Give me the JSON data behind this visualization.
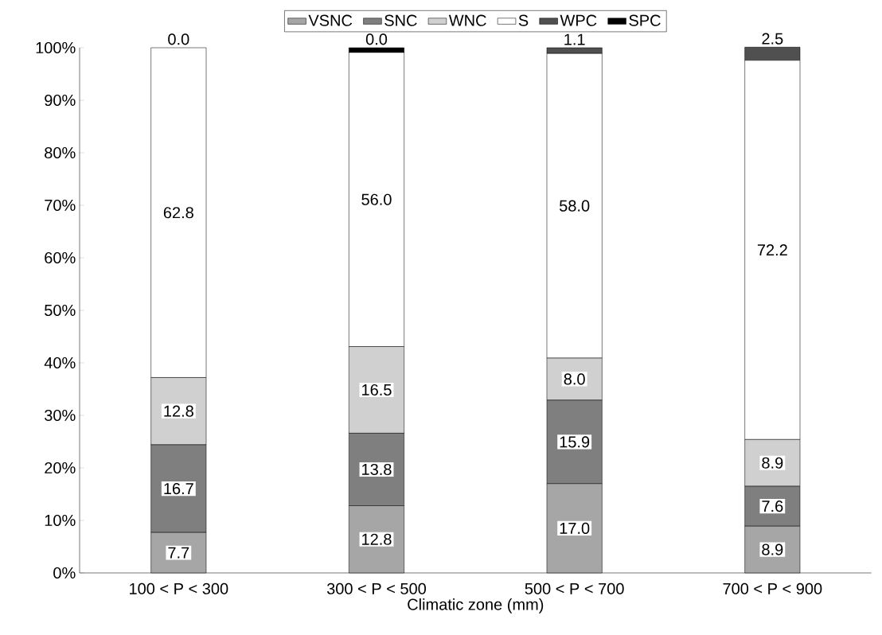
{
  "chart_data": {
    "type": "bar",
    "stacked": true,
    "xlabel": "Climatic zone (mm)",
    "categories": [
      "100 < P < 300",
      "300 < P < 500",
      "500 < P < 700",
      "700 < P < 900"
    ],
    "series": [
      {
        "name": "VSNC",
        "color": "#a6a6a6",
        "values": [
          7.7,
          12.8,
          17.0,
          8.9
        ],
        "value_labels": [
          "7.7",
          "12.8",
          "17.0",
          "8.9"
        ]
      },
      {
        "name": "SNC",
        "color": "#7f7f7f",
        "values": [
          16.7,
          13.8,
          15.9,
          7.6
        ],
        "value_labels": [
          "16.7",
          "13.8",
          "15.9",
          "7.6"
        ]
      },
      {
        "name": "WNC",
        "color": "#d0d0d0",
        "values": [
          12.8,
          16.5,
          8.0,
          8.9
        ],
        "value_labels": [
          "12.8",
          "16.5",
          "8.0",
          "8.9"
        ]
      },
      {
        "name": "S",
        "color": "#ffffff",
        "values": [
          62.8,
          56.0,
          58.0,
          72.2
        ],
        "value_labels": [
          "62.8",
          "56.0",
          "58.0",
          "72.2"
        ]
      },
      {
        "name": "WPC",
        "color": "#505050",
        "values": [
          0.0,
          0.0,
          1.1,
          2.5
        ],
        "value_labels": [
          "0.0",
          "0.0",
          "1.1",
          "2.5"
        ]
      },
      {
        "name": "SPC",
        "color": "#000000",
        "values": [
          0.0,
          0.9,
          0.0,
          0.0
        ]
      }
    ],
    "ylim": [
      0,
      100
    ],
    "yticks": [
      {
        "value": 0,
        "label": "0%"
      },
      {
        "value": 10,
        "label": "10%"
      },
      {
        "value": 20,
        "label": "20%"
      },
      {
        "value": 30,
        "label": "30%"
      },
      {
        "value": 40,
        "label": "40%"
      },
      {
        "value": 50,
        "label": "50%"
      },
      {
        "value": 60,
        "label": "60%"
      },
      {
        "value": 70,
        "label": "70%"
      },
      {
        "value": 80,
        "label": "80%"
      },
      {
        "value": 90,
        "label": "90%"
      },
      {
        "value": 100,
        "label": "100%"
      }
    ],
    "legend": "top",
    "grid": false
  }
}
